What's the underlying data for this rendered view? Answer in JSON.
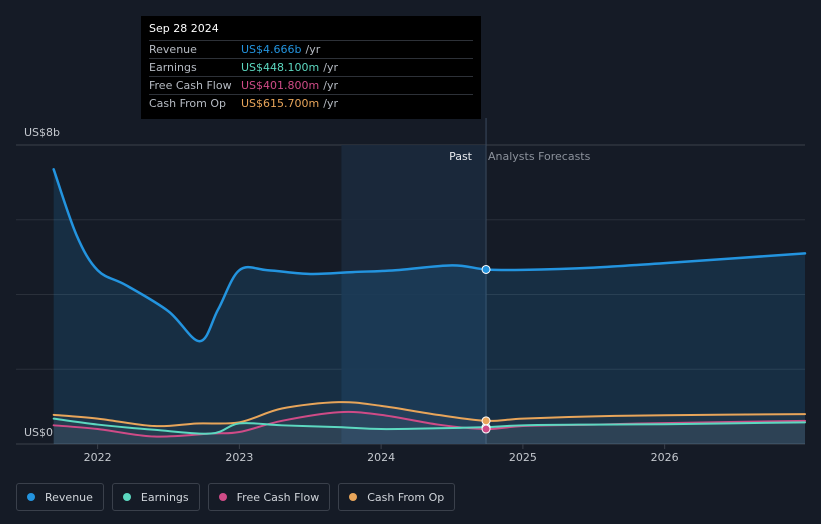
{
  "tooltip": {
    "date": "Sep 28 2024",
    "rows": [
      {
        "label": "Revenue",
        "value": "US$4.666b",
        "unit": "/yr",
        "color": "#2394df"
      },
      {
        "label": "Earnings",
        "value": "US$448.100m",
        "unit": "/yr",
        "color": "#5cd8c0"
      },
      {
        "label": "Free Cash Flow",
        "value": "US$401.800m",
        "unit": "/yr",
        "color": "#cf4b87"
      },
      {
        "label": "Cash From Op",
        "value": "US$615.700m",
        "unit": "/yr",
        "color": "#e8a55a"
      }
    ]
  },
  "legend": [
    {
      "label": "Revenue",
      "color": "#2394df"
    },
    {
      "label": "Earnings",
      "color": "#5cd8c0"
    },
    {
      "label": "Free Cash Flow",
      "color": "#cf4b87"
    },
    {
      "label": "Cash From Op",
      "color": "#e8a55a"
    }
  ],
  "chart_data": {
    "type": "line",
    "y_top_label": "US$8b",
    "y_bottom_label": "US$0",
    "ylim": [
      0,
      8
    ],
    "y_unit": "billions USD",
    "xlim": [
      2021.65,
      2026.99
    ],
    "past_label": "Past",
    "forecast_label": "Analysts Forecasts",
    "split_x": 2024.74,
    "highlight_start": 2023.72,
    "x_ticks": [
      {
        "value": 2022,
        "label": "2022"
      },
      {
        "value": 2023,
        "label": "2023"
      },
      {
        "value": 2024,
        "label": "2024"
      },
      {
        "value": 2025,
        "label": "2025"
      },
      {
        "value": 2026,
        "label": "2026"
      }
    ],
    "gridlines": [
      0,
      2,
      4,
      6,
      8
    ],
    "series": [
      {
        "name": "Revenue",
        "color": "#2394df",
        "area": true,
        "points": [
          [
            2021.69,
            7.35
          ],
          [
            2021.85,
            5.6
          ],
          [
            2022.0,
            4.65
          ],
          [
            2022.2,
            4.25
          ],
          [
            2022.5,
            3.55
          ],
          [
            2022.72,
            2.75
          ],
          [
            2022.85,
            3.6
          ],
          [
            2023.0,
            4.65
          ],
          [
            2023.2,
            4.65
          ],
          [
            2023.5,
            4.55
          ],
          [
            2023.8,
            4.6
          ],
          [
            2024.1,
            4.65
          ],
          [
            2024.5,
            4.78
          ],
          [
            2024.74,
            4.67
          ],
          [
            2025.0,
            4.66
          ],
          [
            2025.5,
            4.72
          ],
          [
            2026.0,
            4.84
          ],
          [
            2026.99,
            5.1
          ]
        ]
      },
      {
        "name": "Earnings",
        "color": "#5cd8c0",
        "area": false,
        "points": [
          [
            2021.69,
            0.68
          ],
          [
            2022.0,
            0.52
          ],
          [
            2022.4,
            0.38
          ],
          [
            2022.8,
            0.28
          ],
          [
            2023.0,
            0.55
          ],
          [
            2023.3,
            0.5
          ],
          [
            2023.7,
            0.45
          ],
          [
            2024.0,
            0.4
          ],
          [
            2024.4,
            0.42
          ],
          [
            2024.74,
            0.45
          ],
          [
            2025.0,
            0.5
          ],
          [
            2025.5,
            0.52
          ],
          [
            2026.0,
            0.53
          ],
          [
            2026.99,
            0.58
          ]
        ]
      },
      {
        "name": "Free Cash Flow",
        "color": "#cf4b87",
        "area": false,
        "points": [
          [
            2021.69,
            0.5
          ],
          [
            2022.0,
            0.4
          ],
          [
            2022.4,
            0.2
          ],
          [
            2022.8,
            0.28
          ],
          [
            2023.0,
            0.32
          ],
          [
            2023.3,
            0.62
          ],
          [
            2023.7,
            0.85
          ],
          [
            2024.0,
            0.78
          ],
          [
            2024.4,
            0.52
          ],
          [
            2024.74,
            0.4
          ],
          [
            2025.0,
            0.48
          ],
          [
            2025.5,
            0.52
          ],
          [
            2026.0,
            0.56
          ],
          [
            2026.99,
            0.62
          ]
        ]
      },
      {
        "name": "Cash From Op",
        "color": "#e8a55a",
        "area": false,
        "points": [
          [
            2021.69,
            0.78
          ],
          [
            2022.0,
            0.68
          ],
          [
            2022.4,
            0.48
          ],
          [
            2022.7,
            0.55
          ],
          [
            2023.0,
            0.58
          ],
          [
            2023.3,
            0.95
          ],
          [
            2023.7,
            1.12
          ],
          [
            2024.0,
            1.02
          ],
          [
            2024.4,
            0.78
          ],
          [
            2024.74,
            0.62
          ],
          [
            2025.0,
            0.68
          ],
          [
            2025.5,
            0.74
          ],
          [
            2026.0,
            0.77
          ],
          [
            2026.99,
            0.8
          ]
        ]
      }
    ]
  }
}
